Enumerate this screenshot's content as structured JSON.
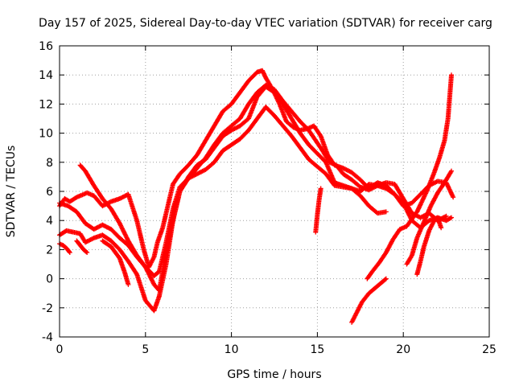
{
  "chart_data": {
    "type": "scatter",
    "title": "Day 157 of 2025, Sidereal Day-to-day VTEC variation (SDTVAR) for receiver carg",
    "xlabel": "GPS time / hours",
    "ylabel": "SDTVAR / TECUs",
    "xlim": [
      0,
      25
    ],
    "ylim": [
      -4,
      16
    ],
    "xticks": [
      0,
      5,
      10,
      15,
      20,
      25
    ],
    "yticks": [
      -4,
      -2,
      0,
      2,
      4,
      6,
      8,
      10,
      12,
      14,
      16
    ],
    "grid": true,
    "marker": "+",
    "color": "#ff0000",
    "series": [
      {
        "name": "s1",
        "x": [
          0.0,
          0.3,
          0.6,
          1.0,
          1.4,
          1.6,
          2.0,
          2.5,
          3.0,
          3.5,
          4.0,
          4.5,
          4.9,
          5.2,
          5.5,
          5.7,
          6.0,
          6.3,
          6.6,
          7.0,
          7.5,
          8.0,
          8.5,
          9.0,
          9.5,
          10.0,
          10.5,
          11.0,
          11.5,
          11.8,
          12.0,
          12.4,
          12.8,
          13.2,
          13.6,
          14.0,
          14.4,
          14.8,
          15.2,
          15.6,
          16.0,
          16.5,
          17.0,
          17.5,
          18.0,
          18.5,
          19.0,
          19.5,
          20.0,
          20.5,
          21.0,
          21.5,
          22.0,
          22.5,
          22.8
        ],
        "y": [
          5.0,
          5.5,
          5.3,
          5.6,
          5.8,
          5.9,
          5.7,
          5.0,
          5.3,
          5.5,
          5.8,
          4.0,
          2.0,
          0.8,
          1.5,
          2.5,
          3.5,
          5.0,
          6.5,
          7.2,
          7.8,
          8.5,
          9.5,
          10.5,
          11.5,
          12.0,
          12.8,
          13.6,
          14.2,
          14.3,
          13.8,
          13.0,
          12.0,
          10.8,
          10.4,
          10.2,
          10.3,
          10.5,
          9.8,
          8.5,
          7.8,
          7.6,
          7.3,
          6.8,
          6.2,
          6.6,
          6.4,
          5.8,
          5.2,
          4.0,
          3.5,
          4.0,
          4.2,
          4.0,
          4.2
        ]
      },
      {
        "name": "s2",
        "x": [
          0.0,
          0.5,
          1.0,
          1.5,
          2.0,
          2.5,
          3.0,
          3.5,
          4.0,
          4.5,
          5.0,
          5.5,
          5.8,
          6.0,
          6.5,
          7.0,
          7.5,
          8.0,
          8.5,
          9.0,
          9.5,
          10.0,
          10.5,
          11.0,
          11.5,
          12.0,
          12.5,
          13.0,
          13.5,
          14.0,
          14.5,
          14.9,
          15.3,
          15.7,
          16.1,
          16.5,
          17.0,
          17.5,
          18.0,
          18.5,
          19.0,
          19.5,
          20.0,
          20.5,
          21.0,
          21.5,
          22.0,
          22.5
        ],
        "y": [
          5.2,
          5.0,
          4.6,
          3.8,
          3.4,
          3.7,
          3.4,
          2.8,
          2.3,
          1.5,
          0.8,
          -0.4,
          -0.8,
          0.5,
          3.5,
          6.0,
          6.9,
          7.6,
          8.3,
          9.2,
          10.0,
          10.5,
          11.0,
          12.0,
          12.8,
          13.3,
          13.0,
          12.2,
          11.5,
          10.8,
          10.2,
          9.5,
          8.8,
          8.0,
          7.8,
          7.2,
          6.8,
          6.3,
          6.1,
          6.4,
          6.6,
          6.5,
          5.5,
          4.5,
          4.2,
          4.5,
          4.0,
          4.3
        ]
      },
      {
        "name": "s3",
        "x": [
          0.0,
          0.4,
          0.8,
          1.2,
          1.5,
          2.0,
          2.5,
          3.0,
          3.5,
          4.0,
          4.5,
          5.0,
          5.5,
          5.8,
          6.2,
          6.6,
          7.0,
          7.5,
          8.0,
          8.5,
          9.0,
          9.5,
          10.0,
          10.5,
          11.0,
          11.5,
          12.0,
          12.5,
          13.0,
          13.5,
          14.0,
          14.5,
          15.0,
          15.5,
          16.0,
          16.5,
          17.0,
          17.5,
          18.0,
          18.5,
          19.0,
          19.5,
          20.0,
          20.5,
          21.0,
          21.5,
          22.0,
          22.5,
          22.9
        ],
        "y": [
          3.0,
          3.3,
          3.2,
          3.1,
          2.5,
          2.8,
          3.0,
          2.6,
          2.0,
          1.2,
          0.3,
          -1.5,
          -2.2,
          -1.2,
          1.0,
          4.0,
          6.0,
          7.0,
          7.8,
          8.2,
          9.0,
          9.8,
          10.2,
          10.5,
          11.0,
          12.5,
          13.2,
          12.8,
          12.0,
          11.0,
          10.0,
          9.2,
          8.6,
          8.0,
          6.6,
          6.4,
          6.2,
          6.0,
          6.5,
          6.4,
          6.2,
          5.8,
          5.0,
          5.2,
          5.8,
          6.4,
          6.7,
          6.6,
          5.6
        ]
      },
      {
        "name": "s4",
        "x": [
          1.2,
          1.5,
          2.0,
          2.5,
          3.0,
          3.5,
          4.0,
          4.5,
          5.0,
          5.5,
          5.8,
          6.2,
          6.6,
          7.0,
          7.5,
          8.0,
          8.5,
          9.0,
          9.5,
          10.0,
          10.5,
          11.0,
          11.5,
          12.0,
          12.5,
          13.0,
          13.5,
          14.0,
          14.5,
          15.0,
          15.5,
          16.0,
          16.5,
          17.0,
          17.5,
          18.0,
          18.5,
          19.0
        ],
        "y": [
          7.8,
          7.4,
          6.4,
          5.5,
          4.8,
          3.8,
          2.6,
          1.6,
          0.8,
          0.2,
          0.5,
          2.5,
          4.8,
          6.3,
          6.9,
          7.2,
          7.5,
          8.0,
          8.8,
          9.2,
          9.6,
          10.2,
          11.0,
          11.8,
          11.2,
          10.5,
          9.8,
          9.0,
          8.2,
          7.7,
          7.2,
          6.4,
          6.3,
          6.2,
          5.7,
          5.0,
          4.5,
          4.6
        ]
      },
      {
        "name": "s5",
        "x": [
          0.0,
          0.2,
          0.4,
          0.6
        ],
        "y": [
          2.4,
          2.3,
          2.1,
          1.8
        ]
      },
      {
        "name": "s6",
        "x": [
          1.0,
          1.2,
          1.4,
          1.6
        ],
        "y": [
          2.6,
          2.3,
          2.0,
          1.8
        ]
      },
      {
        "name": "s7",
        "x": [
          2.5,
          3.0,
          3.5,
          3.8,
          4.0
        ],
        "y": [
          2.6,
          2.2,
          1.4,
          0.4,
          -0.4
        ]
      },
      {
        "name": "s8",
        "x": [
          14.9,
          15.0,
          15.1,
          15.2
        ],
        "y": [
          3.2,
          4.4,
          5.4,
          6.2
        ]
      },
      {
        "name": "s9",
        "x": [
          17.0,
          17.3,
          17.6,
          18.0,
          18.3,
          18.6,
          18.8,
          19.0
        ],
        "y": [
          -3.0,
          -2.3,
          -1.6,
          -1.0,
          -0.7,
          -0.4,
          -0.2,
          0.0
        ]
      },
      {
        "name": "s10",
        "x": [
          17.9,
          18.2,
          18.6,
          19.0,
          19.4,
          19.8,
          20.2,
          20.5,
          20.8,
          21.0,
          21.4,
          21.8,
          22.1,
          22.4,
          22.6,
          22.8
        ],
        "y": [
          0.0,
          0.5,
          1.1,
          1.8,
          2.7,
          3.4,
          3.6,
          4.1,
          4.6,
          5.1,
          6.1,
          7.3,
          8.3,
          9.5,
          11.0,
          14.0
        ]
      },
      {
        "name": "s11",
        "x": [
          20.2,
          20.5,
          20.8,
          21.2,
          21.6,
          22.0,
          22.4,
          22.8
        ],
        "y": [
          1.0,
          1.6,
          2.8,
          3.9,
          5.0,
          5.9,
          6.6,
          7.4
        ]
      },
      {
        "name": "s12",
        "x": [
          20.8,
          21.0,
          21.2,
          21.5,
          21.8,
          22.0,
          22.2
        ],
        "y": [
          0.3,
          1.2,
          2.2,
          3.3,
          4.0,
          4.2,
          3.5
        ]
      }
    ]
  }
}
